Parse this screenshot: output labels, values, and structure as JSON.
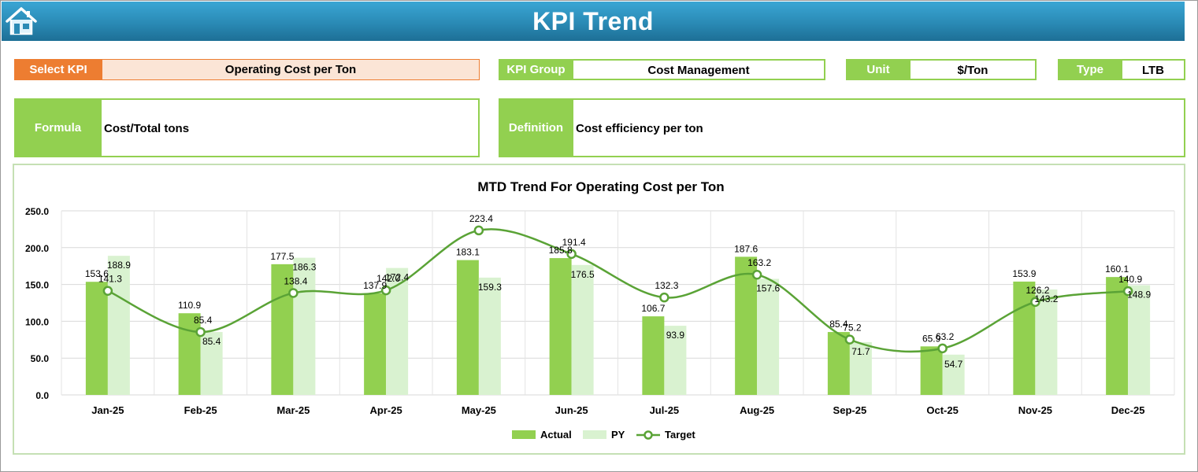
{
  "header": {
    "title": "KPI Trend",
    "home_icon": "home-icon"
  },
  "fields": {
    "select_kpi_label": "Select KPI",
    "select_kpi_value": "Operating Cost per Ton",
    "kpi_group_label": "KPI Group",
    "kpi_group_value": "Cost Management",
    "unit_label": "Unit",
    "unit_value": "$/Ton",
    "type_label": "Type",
    "type_value": "LTB",
    "formula_label": "Formula",
    "formula_value": "Cost/Total tons",
    "definition_label": "Definition",
    "definition_value": "Cost efficiency per ton"
  },
  "colors": {
    "accent_orange": "#ed7d31",
    "accent_green": "#92d050",
    "actual": "#92d050",
    "py": "#d9f2d0",
    "target": "#5aa336",
    "header_blue": "#2a8ab5"
  },
  "chart_data": {
    "type": "bar",
    "title": "MTD Trend For Operating Cost per Ton",
    "categories": [
      "Jan-25",
      "Feb-25",
      "Mar-25",
      "Apr-25",
      "May-25",
      "Jun-25",
      "Jul-25",
      "Aug-25",
      "Sep-25",
      "Oct-25",
      "Nov-25",
      "Dec-25"
    ],
    "series": [
      {
        "name": "Actual",
        "type": "bar",
        "values": [
          153.6,
          110.9,
          177.5,
          137.9,
          183.1,
          185.8,
          106.7,
          187.6,
          85.4,
          65.9,
          153.9,
          160.1
        ]
      },
      {
        "name": "PY",
        "type": "bar",
        "values": [
          188.9,
          85.4,
          186.3,
          172.4,
          159.3,
          176.5,
          93.9,
          157.6,
          71.7,
          54.7,
          143.2,
          148.9
        ]
      },
      {
        "name": "Target",
        "type": "line",
        "values": [
          141.3,
          85.4,
          138.4,
          142.0,
          223.4,
          191.4,
          132.3,
          163.2,
          75.2,
          63.2,
          126.2,
          140.9
        ]
      }
    ],
    "y_ticks": [
      "250.0",
      "200.0",
      "150.0",
      "100.0",
      "50.0",
      "0.0"
    ],
    "ylim": [
      0,
      250
    ],
    "grid": true,
    "legend_position": "bottom"
  }
}
